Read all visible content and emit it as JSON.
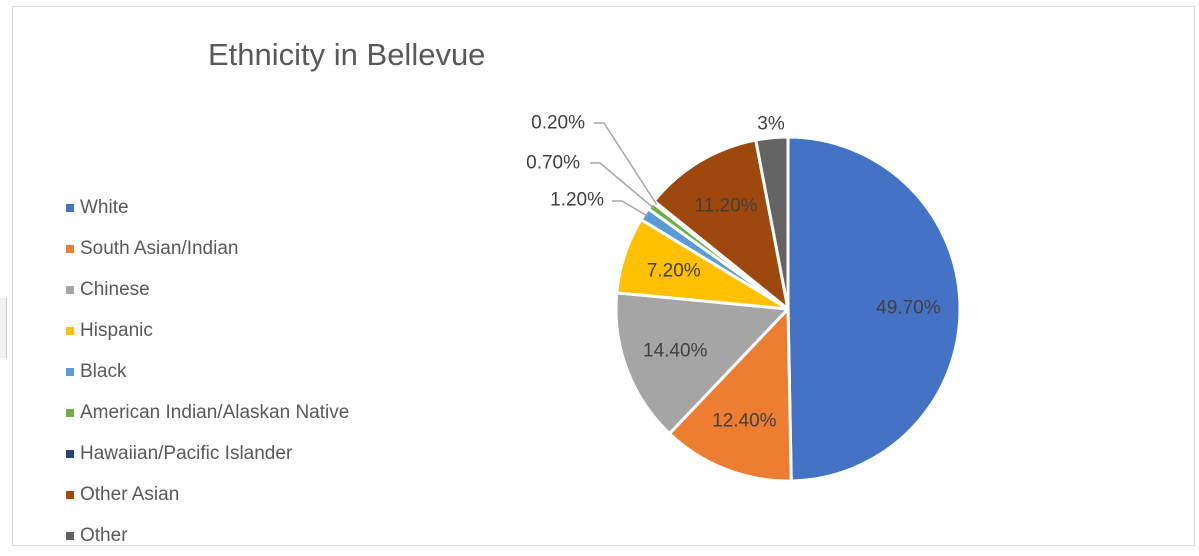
{
  "chart_data": {
    "type": "pie",
    "title": "Ethnicity in Bellevue",
    "legend_position": "left",
    "categories": [
      "White",
      "South Asian/Indian",
      "Chinese",
      "Hispanic",
      "Black",
      "American Indian/Alaskan Native",
      "Hawaiian/Pacific Islander",
      "Other Asian",
      "Other"
    ],
    "values": [
      49.7,
      12.4,
      14.4,
      7.2,
      1.2,
      0.7,
      0.2,
      11.2,
      3
    ],
    "labels": [
      "49.70%",
      "12.40%",
      "14.40%",
      "7.20%",
      "1.20%",
      "0.70%",
      "0.20%",
      "11.20%",
      "3%"
    ],
    "colors": [
      "#4472C4",
      "#ED7D31",
      "#A5A5A5",
      "#FFC000",
      "#5B9BD5",
      "#70AD47",
      "#264478",
      "#9E480E",
      "#636363"
    ]
  }
}
